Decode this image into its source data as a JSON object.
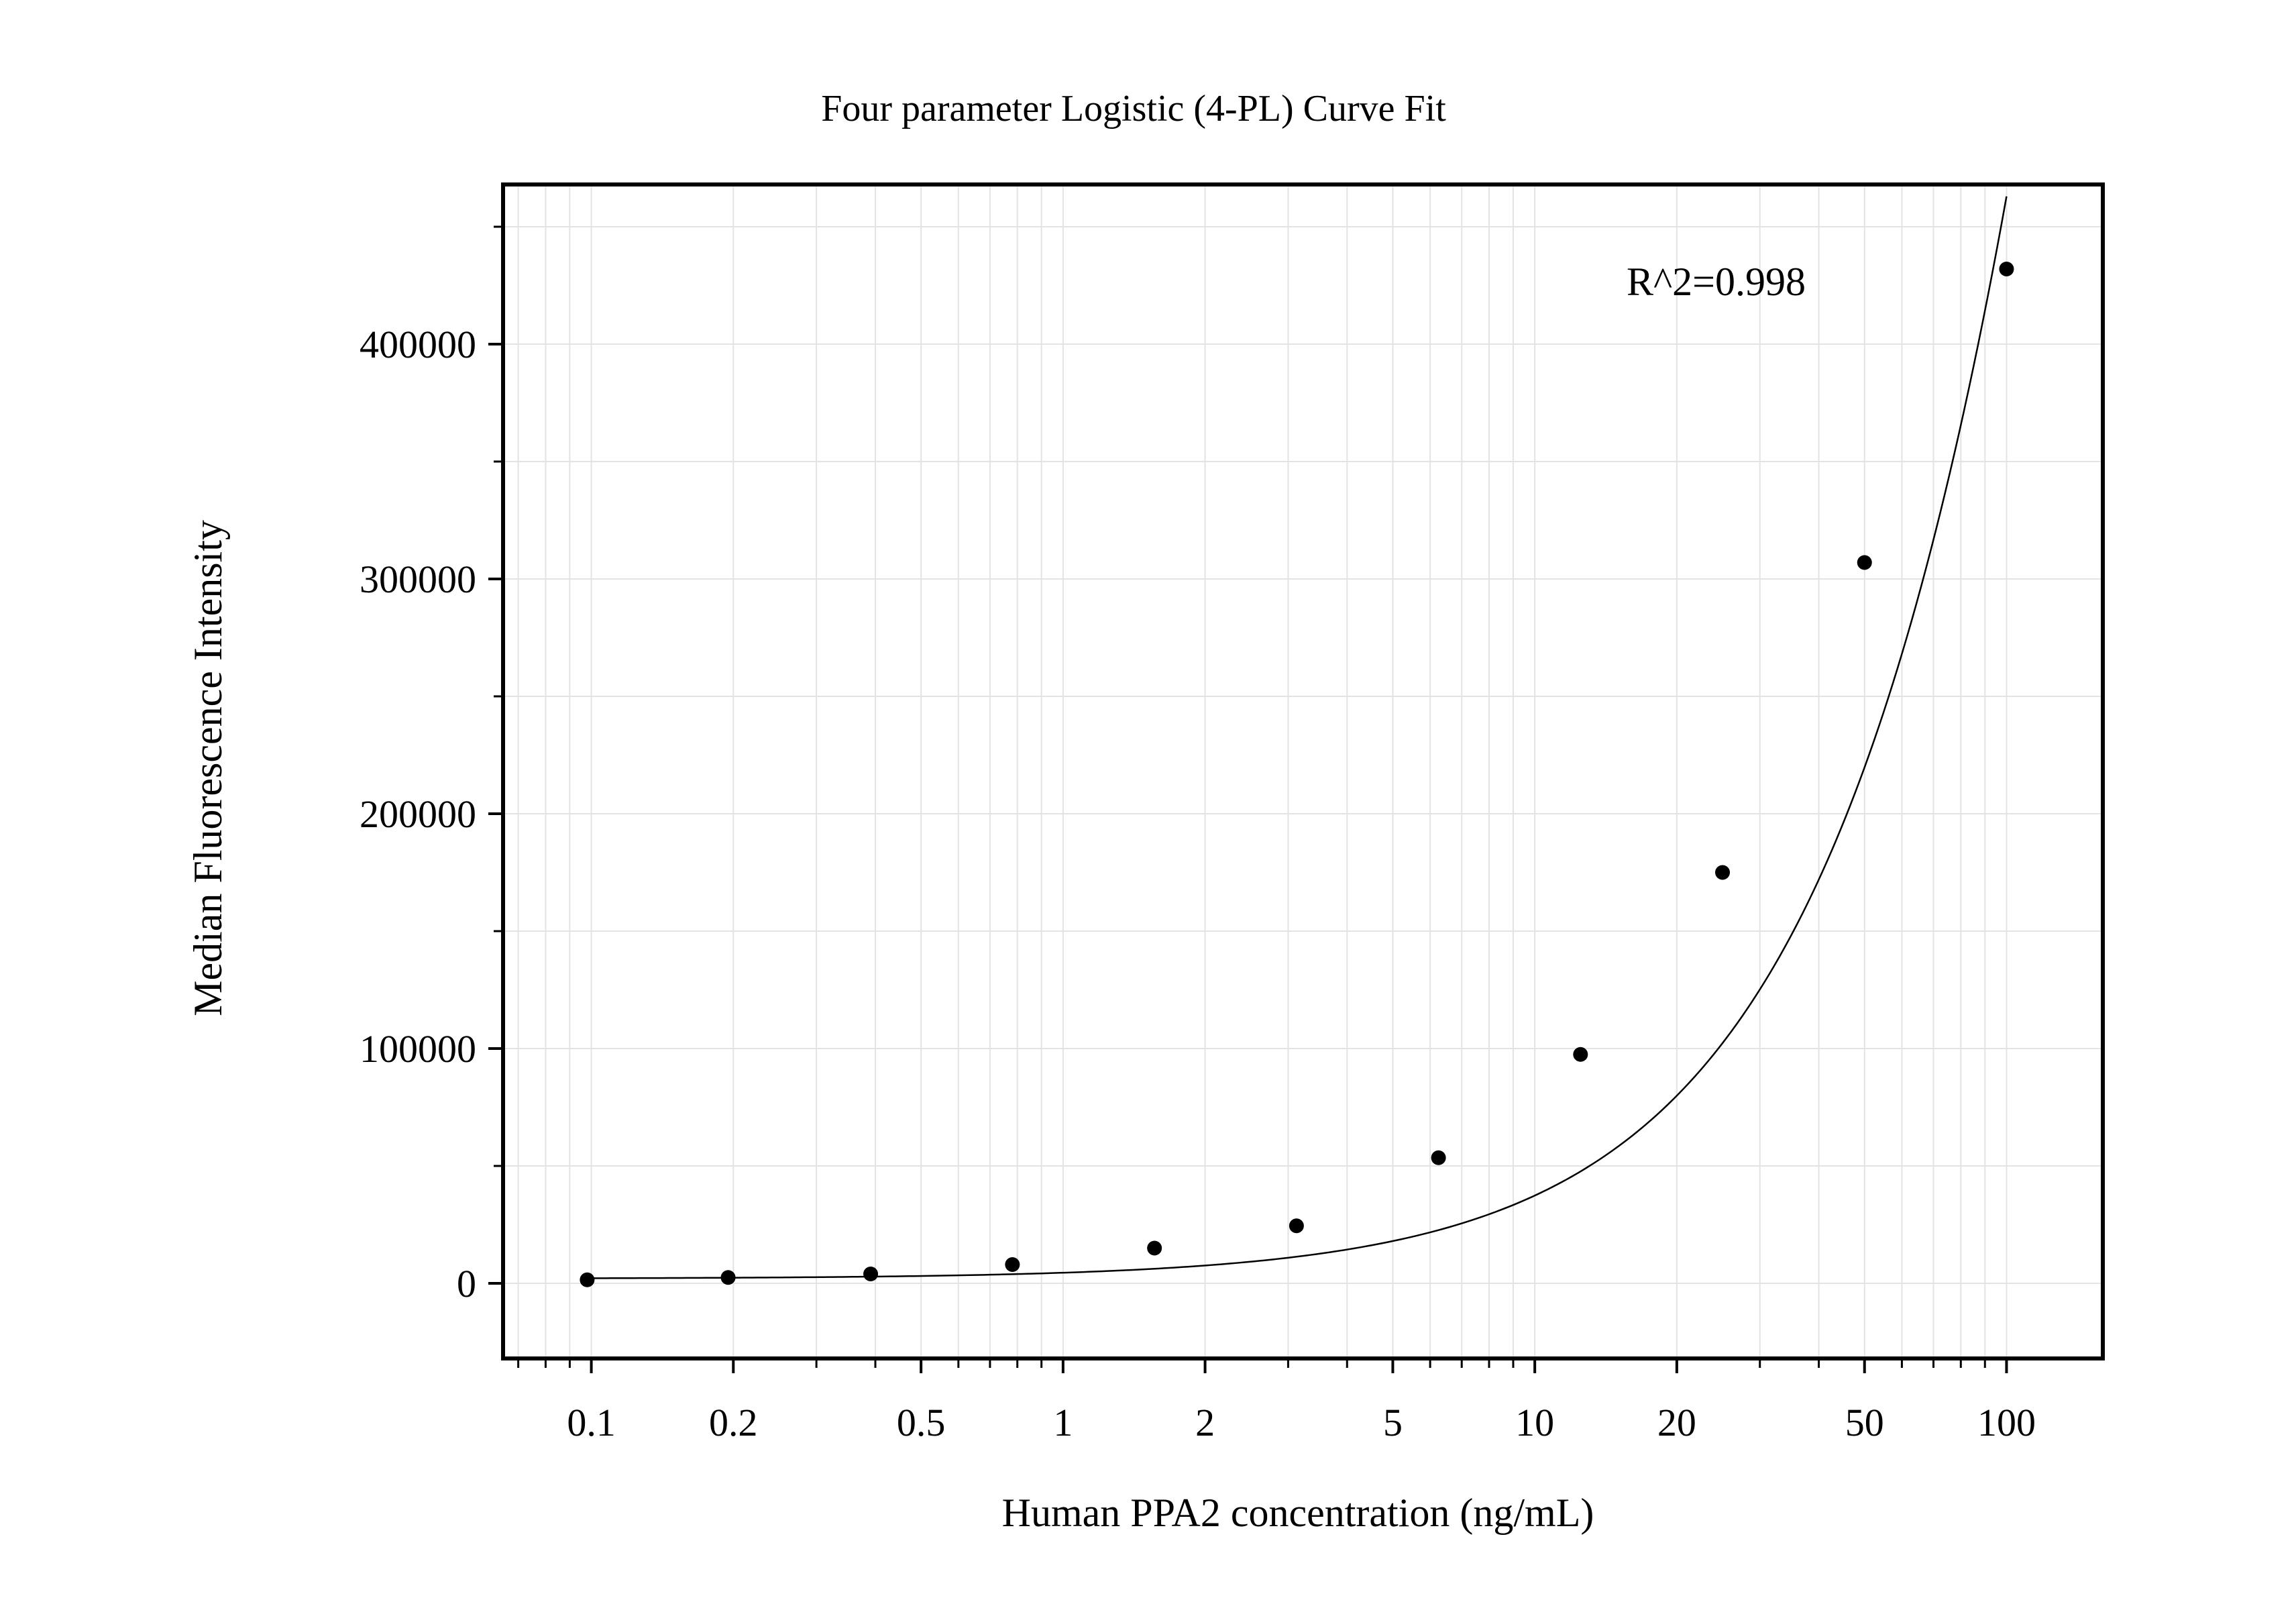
{
  "chart_data": {
    "type": "scatter",
    "title": "Four parameter Logistic (4-PL) Curve Fit",
    "xlabel": "Human PPA2 concentration (ng/mL)",
    "ylabel": "Median Fluorescence Intensity",
    "xscale": "log",
    "xlim": [
      0.065,
      160
    ],
    "ylim": [
      -32000,
      468000
    ],
    "grid": true,
    "x_ticks": [
      0.1,
      0.2,
      0.5,
      1,
      2,
      5,
      10,
      20,
      50,
      100
    ],
    "x_tick_labels": [
      "0.1",
      "0.2",
      "0.5",
      "1",
      "2",
      "5",
      "10",
      "20",
      "50",
      "100"
    ],
    "y_ticks": [
      0,
      100000,
      200000,
      300000,
      400000
    ],
    "y_tick_labels": [
      "0",
      "100000",
      "200000",
      "300000",
      "400000"
    ],
    "annotation": "R^2=0.998",
    "series": [
      {
        "kind": "points",
        "x": [
          0.098,
          0.195,
          0.391,
          0.781,
          1.5625,
          3.125,
          6.25,
          12.5,
          25,
          50,
          100
        ],
        "y": [
          1500,
          2500,
          4000,
          8000,
          15000,
          24500,
          53500,
          97500,
          175000,
          307000,
          432000
        ]
      },
      {
        "kind": "fit-curve",
        "model": "4-PL",
        "params": {
          "A": 2000,
          "B": 1.15,
          "C": 800,
          "D": 5500000
        }
      }
    ],
    "colors": {
      "points": "#000000",
      "curve": "#000000",
      "grid": "#e3e3e3",
      "axes": "#000000"
    }
  }
}
